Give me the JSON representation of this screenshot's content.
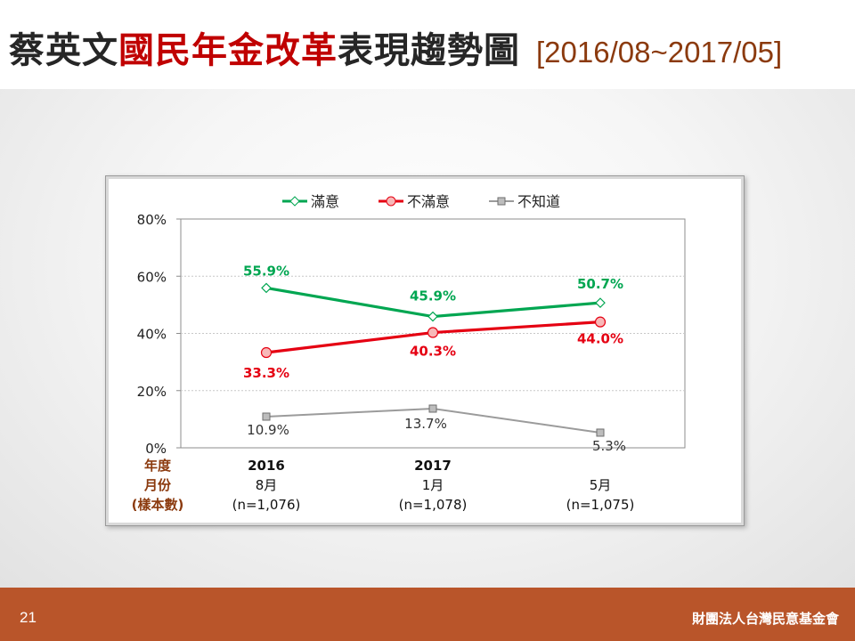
{
  "slide": {
    "title_parts": [
      "蔡英文",
      "國民年金改革",
      "表現趨勢圖"
    ],
    "date_range": "[2016/08~2017/05]",
    "page_number": "21",
    "organization": "財團法人台灣民意基金會"
  },
  "colors": {
    "satisfied": "#00a651",
    "unsatisfied": "#e50012",
    "unknown": "#9b9b9b",
    "axis_label": "#8b3a0e",
    "footer": "#b9552a"
  },
  "chart_data": {
    "type": "line",
    "title": "",
    "xlabel": "",
    "ylabel": "",
    "ylim": [
      0,
      80
    ],
    "yticks": [
      0,
      20,
      40,
      60,
      80
    ],
    "ytick_labels": [
      "0%",
      "20%",
      "40%",
      "60%",
      "80%"
    ],
    "grid": true,
    "legend_position": "top-center",
    "row_labels": [
      "年度",
      "月份",
      "(樣本數)"
    ],
    "categories": [
      {
        "year": "2016",
        "month": "8月",
        "n": "(n=1,076)"
      },
      {
        "year": "2017",
        "month": "1月",
        "n": "(n=1,078)"
      },
      {
        "year": "",
        "month": "5月",
        "n": "(n=1,075)"
      }
    ],
    "series": [
      {
        "name": "滿意",
        "key": "satisfied",
        "marker": "diamond",
        "values": [
          55.9,
          45.9,
          50.7
        ],
        "labels": [
          "55.9%",
          "45.9%",
          "50.7%"
        ]
      },
      {
        "name": "不滿意",
        "key": "unsatisfied",
        "marker": "circle",
        "values": [
          33.3,
          40.3,
          44.0
        ],
        "labels": [
          "33.3%",
          "40.3%",
          "44.0%"
        ]
      },
      {
        "name": "不知道",
        "key": "unknown",
        "marker": "square-x",
        "values": [
          10.9,
          13.7,
          5.3
        ],
        "labels": [
          "10.9%",
          "13.7%",
          "5.3%"
        ]
      }
    ]
  }
}
